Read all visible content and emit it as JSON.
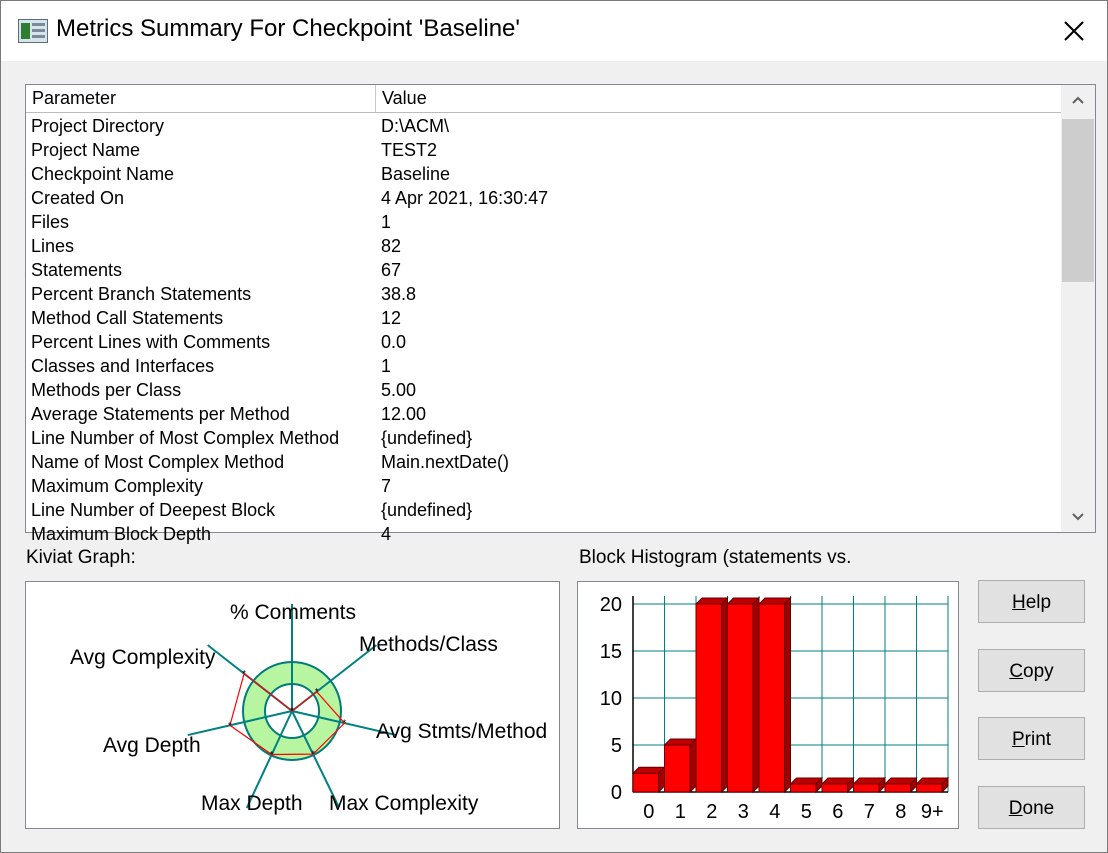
{
  "window": {
    "title": "Metrics Summary For Checkpoint 'Baseline'"
  },
  "table": {
    "headers": [
      "Parameter",
      "Value"
    ],
    "rows": [
      [
        "Project Directory",
        "D:\\ACM\\"
      ],
      [
        "Project Name",
        "TEST2"
      ],
      [
        "Checkpoint Name",
        "Baseline"
      ],
      [
        "Created On",
        "4 Apr 2021, 16:30:47"
      ],
      [
        "Files",
        "1"
      ],
      [
        "Lines",
        "82"
      ],
      [
        "Statements",
        "67"
      ],
      [
        "Percent Branch Statements",
        "38.8"
      ],
      [
        "Method Call Statements",
        "12"
      ],
      [
        "Percent Lines with Comments",
        "0.0"
      ],
      [
        "Classes and Interfaces",
        "1"
      ],
      [
        "Methods per Class",
        "5.00"
      ],
      [
        "Average Statements per Method",
        "12.00"
      ],
      [
        "Line Number of Most Complex Method",
        "{undefined}"
      ],
      [
        "Name of Most Complex Method",
        "Main.nextDate()"
      ],
      [
        "Maximum Complexity",
        "7"
      ],
      [
        "Line Number of Deepest Block",
        "{undefined}"
      ],
      [
        "Maximum Block Depth",
        "4"
      ]
    ]
  },
  "kiviat": {
    "label": "Kiviat Graph:",
    "axes": [
      "% Comments",
      "Methods/Class",
      "Avg Stmts/Method",
      "Max Complexity",
      "Max Depth",
      "Avg Depth",
      "Avg Complexity"
    ],
    "ring_color": "#b8f5a0",
    "polygon_color": "#ff0000"
  },
  "histogram": {
    "label": "Block Histogram (statements vs.",
    "bar_color": "#ff0000"
  },
  "chart_data": {
    "type": "bar",
    "categories": [
      "0",
      "1",
      "2",
      "3",
      "4",
      "5",
      "6",
      "7",
      "8",
      "9+"
    ],
    "values": [
      2,
      5,
      20,
      20,
      20,
      0,
      0,
      0,
      0,
      0
    ],
    "yticks": [
      "0",
      "5",
      "10",
      "15",
      "20"
    ],
    "ylim": [
      0,
      20
    ],
    "grid": true
  },
  "buttons": {
    "help": {
      "mnemonic": "H",
      "rest": "elp"
    },
    "copy": {
      "mnemonic": "C",
      "rest": "opy"
    },
    "print": {
      "mnemonic": "P",
      "rest": "rint"
    },
    "done": {
      "mnemonic": "D",
      "rest": "one"
    }
  }
}
